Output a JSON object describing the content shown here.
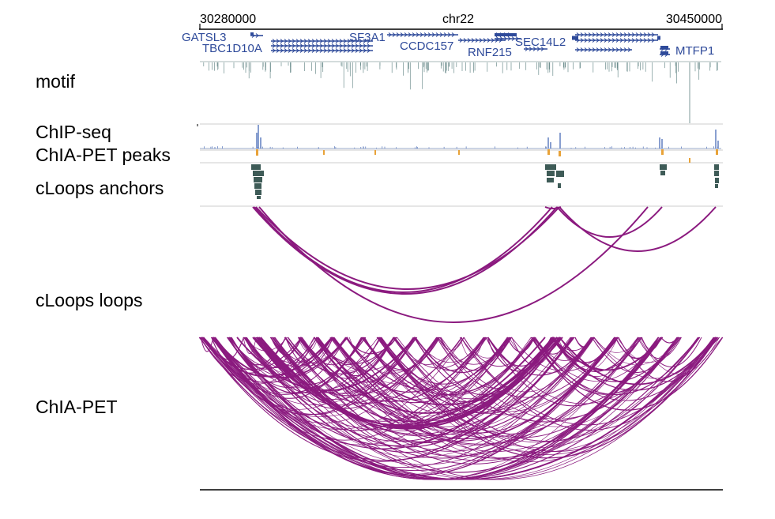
{
  "chromosome": "chr22",
  "coord_start": "30280000",
  "coord_end": "30450000",
  "track_labels": {
    "motif": "motif",
    "chipseq": "ChIP-seq",
    "peaks": "ChIA-PET peaks",
    "anchors": "cLoops anchors",
    "loops": "cLoops loops",
    "chiapet": "ChIA-PET"
  },
  "genes": [
    "GATSL3",
    "TBC1D10A",
    "SF3A1",
    "CCDC157",
    "RNF215",
    "SEC14L2",
    "MTFP1"
  ],
  "colors": {
    "gene": "#2e4a9a",
    "motif": "#6f8f8f",
    "chipseq": "#3a5fb0",
    "peak": "#e8a238",
    "anchor": "#3e5b57",
    "loop": "#8b1a7f",
    "chiapet": "#8b1a7f",
    "separator": "#cccccc"
  }
}
